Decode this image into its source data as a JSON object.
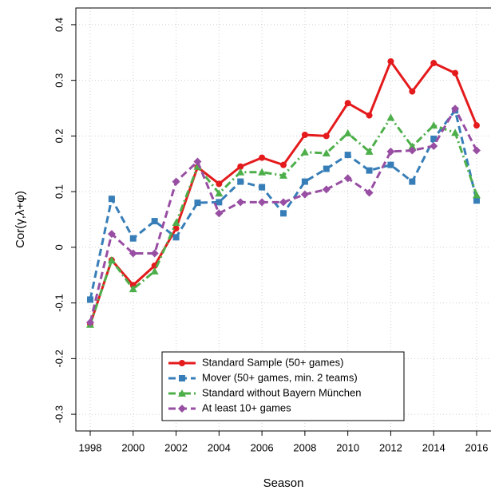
{
  "chart_data": {
    "type": "line",
    "x_label": "Season",
    "y_label": "Cor(γ,λ+φ)",
    "x": [
      1998,
      1999,
      2000,
      2001,
      2002,
      2003,
      2004,
      2005,
      2006,
      2007,
      2008,
      2009,
      2010,
      2011,
      2012,
      2013,
      2014,
      2015,
      2016
    ],
    "series": [
      {
        "name": "Standard Sample (50+ games)",
        "color": "#e41a1c",
        "line_style": "solid",
        "marker": "circle",
        "values": [
          -0.138,
          -0.023,
          -0.068,
          -0.033,
          0.034,
          0.144,
          0.114,
          0.145,
          0.161,
          0.148,
          0.202,
          0.2,
          0.259,
          0.237,
          0.334,
          0.28,
          0.331,
          0.313,
          0.219
        ]
      },
      {
        "name": "Mover (50+ games, min. 2 teams)",
        "color": "#377eb8",
        "line_style": "dashed",
        "marker": "square",
        "values": [
          -0.094,
          0.087,
          0.016,
          0.047,
          0.018,
          0.08,
          0.081,
          0.118,
          0.108,
          0.061,
          0.118,
          0.141,
          0.166,
          0.138,
          0.148,
          0.118,
          0.195,
          0.246,
          0.084
        ]
      },
      {
        "name": "Standard without Bayern München",
        "color": "#4daf4a",
        "line_style": "dashdot",
        "marker": "triangle",
        "values": [
          -0.139,
          -0.023,
          -0.075,
          -0.043,
          0.044,
          0.145,
          0.097,
          0.135,
          0.135,
          0.129,
          0.171,
          0.169,
          0.205,
          0.172,
          0.233,
          0.181,
          0.219,
          0.206,
          0.094
        ]
      },
      {
        "name": "At least 10+ games",
        "color": "#984ea3",
        "line_style": "dashed",
        "marker": "diamond",
        "values": [
          -0.135,
          0.024,
          -0.011,
          -0.011,
          0.118,
          0.154,
          0.061,
          0.081,
          0.081,
          0.081,
          0.095,
          0.104,
          0.124,
          0.098,
          0.172,
          0.174,
          0.182,
          0.249,
          0.174
        ]
      }
    ],
    "xlim": [
      1997.33,
      2016.67
    ],
    "xticks": [
      1998,
      2000,
      2002,
      2004,
      2006,
      2008,
      2010,
      2012,
      2014,
      2016
    ],
    "ylim": [
      -0.33,
      0.43
    ],
    "yticks": [
      -0.3,
      -0.2,
      -0.1,
      0,
      0.1,
      0.2,
      0.3,
      0.4
    ],
    "grid": true,
    "legend": "bottom"
  }
}
